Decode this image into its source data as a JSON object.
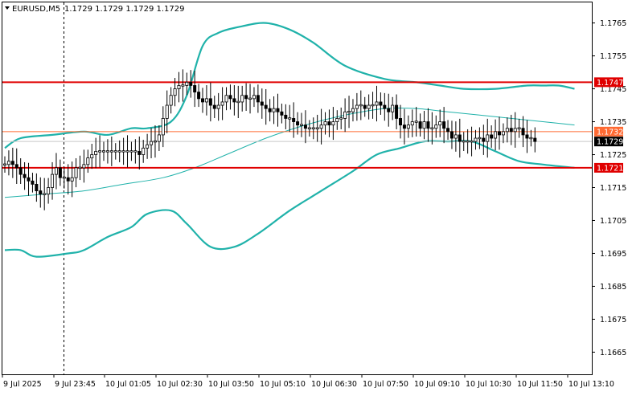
{
  "header": {
    "symbol": "EURUSD,M5",
    "ohlc": "1.1729 1.1729 1.1729 1.1729"
  },
  "colors": {
    "background": "#ffffff",
    "axis": "#000000",
    "bollinger": "#20b2aa",
    "resistance_line": "#e00000",
    "level_line": "#ff6a33",
    "price_tag_bg": "#000000",
    "level_tag_bg": "#e00000"
  },
  "chart_data": {
    "type": "candlestick",
    "title": "EURUSD,M5",
    "ylim": [
      1.1659,
      1.1771
    ],
    "y_ticks": [
      "1.1765",
      "1.1755",
      "1.1745",
      "1.1735",
      "1.1725",
      "1.1715",
      "1.1705",
      "1.1695",
      "1.1685",
      "1.1675",
      "1.1665"
    ],
    "x_ticks": [
      "9 Jul 2025",
      "9 Jul 23:45",
      "10 Jul 01:05",
      "10 Jul 02:30",
      "10 Jul 03:50",
      "10 Jul 05:10",
      "10 Jul 06:30",
      "10 Jul 07:50",
      "10 Jul 09:10",
      "10 Jul 10:30",
      "10 Jul 11:50",
      "10 Jul 13:10"
    ],
    "grid": false,
    "price_levels": [
      {
        "label": "1.1747",
        "value": 1.1747,
        "style": "thick-red"
      },
      {
        "label": "1.1732",
        "value": 1.1732,
        "style": "thin-orange"
      },
      {
        "label": "1.1721",
        "value": 1.1721,
        "style": "thick-red"
      }
    ],
    "current_price": {
      "label": "1.1729",
      "value": 1.1729
    },
    "closes": [
      1.1722,
      1.1723,
      1.1722,
      1.1721,
      1.1719,
      1.1718,
      1.1717,
      1.1716,
      1.1714,
      1.1713,
      1.1713,
      1.1715,
      1.1719,
      1.1721,
      1.1718,
      1.1718,
      1.1717,
      1.1718,
      1.1721,
      1.1721,
      1.1722,
      1.1724,
      1.1725,
      1.1726,
      1.1726,
      1.1726,
      1.1726,
      1.1726,
      1.1726,
      1.1726,
      1.1726,
      1.1726,
      1.1726,
      1.1726,
      1.1725,
      1.1727,
      1.1728,
      1.1729,
      1.1729,
      1.1731,
      1.1736,
      1.174,
      1.1743,
      1.1745,
      1.1746,
      1.1746,
      1.1747,
      1.1746,
      1.1744,
      1.1742,
      1.1741,
      1.1742,
      1.174,
      1.1739,
      1.174,
      1.1741,
      1.1743,
      1.1742,
      1.1741,
      1.1741,
      1.1743,
      1.1742,
      1.1742,
      1.1743,
      1.1741,
      1.174,
      1.1739,
      1.1738,
      1.1739,
      1.1738,
      1.1737,
      1.1736,
      1.1736,
      1.1735,
      1.1734,
      1.1734,
      1.1733,
      1.1733,
      1.1733,
      1.1733,
      1.1734,
      1.1735,
      1.1734,
      1.1735,
      1.1736,
      1.1736,
      1.1738,
      1.1738,
      1.1739,
      1.174,
      1.174,
      1.1739,
      1.174,
      1.174,
      1.1741,
      1.174,
      1.1739,
      1.1738,
      1.174,
      1.1736,
      1.1734,
      1.1733,
      1.1734,
      1.1735,
      1.1735,
      1.1733,
      1.1735,
      1.1733,
      1.1733,
      1.1734,
      1.1735,
      1.1733,
      1.1732,
      1.173,
      1.1731,
      1.1729,
      1.1729,
      1.1729,
      1.1729,
      1.173,
      1.173,
      1.1729,
      1.1731,
      1.173,
      1.1732,
      1.1731,
      1.1732,
      1.1733,
      1.1732,
      1.1733,
      1.1733,
      1.1731,
      1.173,
      1.173,
      1.1729
    ],
    "bollinger_bands": {
      "upper": [
        [
          0,
          1.1727
        ],
        [
          4,
          1.173
        ],
        [
          12,
          1.1731
        ],
        [
          20,
          1.1732
        ],
        [
          26,
          1.1731
        ],
        [
          32,
          1.1733
        ],
        [
          36,
          1.1733
        ],
        [
          42,
          1.1735
        ],
        [
          46,
          1.1743
        ],
        [
          50,
          1.1758
        ],
        [
          54,
          1.1762
        ],
        [
          60,
          1.1764
        ],
        [
          66,
          1.1765
        ],
        [
          72,
          1.1763
        ],
        [
          78,
          1.1759
        ],
        [
          86,
          1.1752
        ],
        [
          96,
          1.1748
        ],
        [
          104,
          1.1747
        ],
        [
          110,
          1.1746
        ],
        [
          116,
          1.1745
        ],
        [
          124,
          1.1745
        ],
        [
          132,
          1.1746
        ],
        [
          136,
          1.1746
        ],
        [
          140,
          1.1746
        ],
        [
          144,
          1.1745
        ]
      ],
      "middle": [
        [
          0,
          1.1712
        ],
        [
          10,
          1.1713
        ],
        [
          20,
          1.1714
        ],
        [
          30,
          1.1716
        ],
        [
          40,
          1.1718
        ],
        [
          48,
          1.1721
        ],
        [
          56,
          1.1725
        ],
        [
          66,
          1.173
        ],
        [
          76,
          1.1734
        ],
        [
          86,
          1.1737
        ],
        [
          96,
          1.1739
        ],
        [
          104,
          1.1739
        ],
        [
          112,
          1.1738
        ],
        [
          120,
          1.1737
        ],
        [
          128,
          1.1736
        ],
        [
          136,
          1.1735
        ],
        [
          144,
          1.1734
        ]
      ],
      "lower": [
        [
          0,
          1.1696
        ],
        [
          4,
          1.1696
        ],
        [
          8,
          1.1694
        ],
        [
          16,
          1.1695
        ],
        [
          20,
          1.1696
        ],
        [
          26,
          1.17
        ],
        [
          32,
          1.1703
        ],
        [
          36,
          1.1707
        ],
        [
          42,
          1.1708
        ],
        [
          46,
          1.1704
        ],
        [
          52,
          1.1697
        ],
        [
          58,
          1.1697
        ],
        [
          64,
          1.1701
        ],
        [
          72,
          1.1708
        ],
        [
          80,
          1.1714
        ],
        [
          88,
          1.172
        ],
        [
          94,
          1.1725
        ],
        [
          100,
          1.1727
        ],
        [
          106,
          1.1729
        ],
        [
          112,
          1.1729
        ],
        [
          118,
          1.1729
        ],
        [
          124,
          1.1726
        ],
        [
          130,
          1.1723
        ],
        [
          136,
          1.1722
        ],
        [
          144,
          1.1721
        ]
      ]
    }
  }
}
